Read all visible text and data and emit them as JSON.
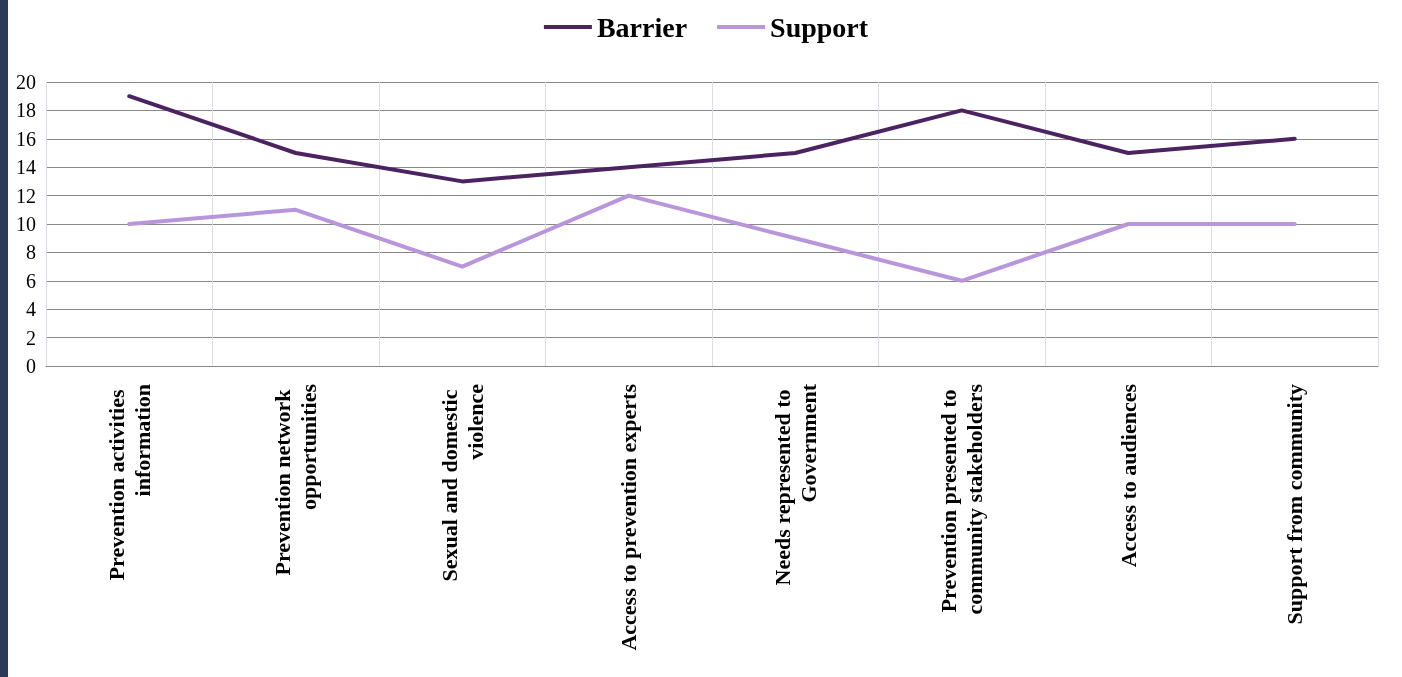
{
  "chart_data": {
    "type": "line",
    "categories": [
      "Prevention activities information",
      "Prevention network opportunities",
      "Sexual and domestic violence",
      "Access to prevention experts",
      "Needs represented to Government",
      "Prevention presented to community stakeholders",
      "Access to audiences",
      "Support from community"
    ],
    "series": [
      {
        "name": "Barrier",
        "color": "#4b2360",
        "values": [
          19,
          15,
          13,
          14,
          15,
          18,
          15,
          16
        ]
      },
      {
        "name": "Support",
        "color": "#b995dc",
        "values": [
          10,
          11,
          7,
          12,
          9,
          6,
          10,
          10
        ]
      }
    ],
    "ylim": [
      0,
      20
    ],
    "yticks": [
      0,
      2,
      4,
      6,
      8,
      10,
      12,
      14,
      16,
      18,
      20
    ],
    "grid": true,
    "legend": "top",
    "marker": "none",
    "line_style": "solid"
  }
}
